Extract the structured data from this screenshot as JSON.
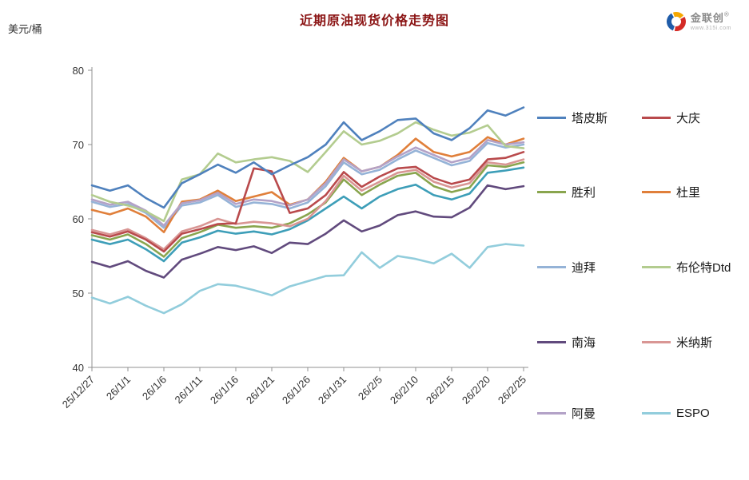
{
  "header": {
    "title": "近期原油现货价格走势图",
    "unit_label": "美元/桶"
  },
  "logo": {
    "brand": "金联创",
    "reg_mark": "®",
    "subtext": "www.315i.com",
    "colors": {
      "blue": "#1F5CA9",
      "red": "#D42B26",
      "yellow": "#F5A800"
    }
  },
  "chart_data": {
    "type": "line",
    "title": "近期原油现货价格走势图",
    "ylabel": "美元/桶",
    "ylim": [
      40,
      80
    ],
    "yticks": [
      80,
      70,
      60,
      50,
      40
    ],
    "x_tick_labels": [
      "25/12/27",
      "26/1/1",
      "26/1/6",
      "26/1/11",
      "26/1/16",
      "26/1/21",
      "26/1/26",
      "26/1/31",
      "26/2/5",
      "26/2/10",
      "26/2/15",
      "26/2/20",
      "26/2/25"
    ],
    "points_per_tick": 2,
    "grid": false,
    "legend_position": "right",
    "axis_color": "#909090",
    "series": [
      {
        "name": "迪拜",
        "color": "#95B3D7",
        "values": [
          62.3,
          61.6,
          62.0,
          60.8,
          58.8,
          61.8,
          62.2,
          63.2,
          61.6,
          62.2,
          62.0,
          61.4,
          62.2,
          64.4,
          67.6,
          66.0,
          66.6,
          68.0,
          69.2,
          68.2,
          67.2,
          67.8,
          70.2,
          69.6,
          70.0
        ]
      },
      {
        "name": "",
        "color": "#3D9EB8",
        "values": [
          57.2,
          56.6,
          57.2,
          55.9,
          54.3,
          56.8,
          57.5,
          58.4,
          58.0,
          58.3,
          57.9,
          58.6,
          59.8,
          61.4,
          63.0,
          61.4,
          63.0,
          64.0,
          64.6,
          63.2,
          62.6,
          63.4,
          66.2,
          66.5,
          66.9
        ]
      },
      {
        "name": "南海",
        "color": "#614A7D",
        "values": [
          54.2,
          53.5,
          54.3,
          53.0,
          52.1,
          54.5,
          55.3,
          56.2,
          55.8,
          56.3,
          55.4,
          56.8,
          56.6,
          58.0,
          59.8,
          58.3,
          59.1,
          60.5,
          61.0,
          60.3,
          60.2,
          61.5,
          64.5,
          64.0,
          64.4
        ]
      },
      {
        "name": "胜利",
        "color": "#89A54E",
        "values": [
          57.8,
          57.2,
          57.9,
          56.6,
          54.9,
          57.4,
          58.2,
          59.2,
          58.8,
          59.0,
          58.8,
          59.4,
          60.6,
          62.2,
          65.3,
          63.2,
          64.6,
          65.8,
          66.2,
          64.4,
          63.6,
          64.2,
          67.2,
          67.0,
          67.6
        ]
      },
      {
        "name": "米纳斯",
        "color": "#D99694",
        "values": [
          58.5,
          57.9,
          58.6,
          57.4,
          55.9,
          58.3,
          59.0,
          60.0,
          59.3,
          59.6,
          59.4,
          59.0,
          60.0,
          62.4,
          65.8,
          63.8,
          65.0,
          66.2,
          66.6,
          65.0,
          64.2,
          64.8,
          67.6,
          67.3,
          68.0
        ]
      },
      {
        "name": "杜里",
        "color": "#E07F3A",
        "values": [
          61.2,
          60.6,
          61.4,
          60.3,
          58.2,
          62.3,
          62.6,
          63.8,
          62.4,
          63.0,
          63.6,
          61.9,
          62.6,
          65.0,
          68.2,
          66.4,
          67.0,
          68.6,
          70.8,
          69.0,
          68.4,
          69.0,
          71.0,
          70.0,
          70.8
        ]
      },
      {
        "name": "阿曼",
        "color": "#B3A2C7",
        "values": [
          62.6,
          61.9,
          62.3,
          61.1,
          59.1,
          62.1,
          62.5,
          63.5,
          62.0,
          62.6,
          62.4,
          61.8,
          62.6,
          64.8,
          68.0,
          66.4,
          67.0,
          68.4,
          69.6,
          68.6,
          67.6,
          68.2,
          70.6,
          70.0,
          70.3
        ]
      },
      {
        "name": "大庆",
        "color": "#B94A4C",
        "values": [
          58.2,
          57.6,
          58.3,
          57.2,
          55.6,
          58.0,
          58.6,
          59.3,
          59.4,
          66.8,
          66.4,
          60.8,
          61.4,
          63.2,
          66.3,
          64.3,
          65.7,
          66.8,
          67.0,
          65.5,
          64.7,
          65.3,
          68.0,
          68.2,
          69.0
        ]
      },
      {
        "name": "布伦特Dtd",
        "color": "#B3CC8F",
        "values": [
          63.2,
          62.3,
          61.8,
          61.0,
          59.7,
          65.3,
          66.0,
          68.8,
          67.6,
          68.0,
          68.3,
          67.8,
          66.3,
          69.0,
          71.8,
          70.0,
          70.5,
          71.5,
          73.0,
          72.0,
          71.2,
          71.6,
          72.6,
          69.8,
          69.5
        ]
      },
      {
        "name": "塔皮斯",
        "color": "#4F81BD",
        "values": [
          64.5,
          63.8,
          64.5,
          62.8,
          61.5,
          64.8,
          66.0,
          67.3,
          66.2,
          67.6,
          66.0,
          67.2,
          68.3,
          70.0,
          73.0,
          70.6,
          71.8,
          73.3,
          73.5,
          71.5,
          70.6,
          72.2,
          74.6,
          73.9,
          75.0
        ]
      },
      {
        "name": "ESPO",
        "color": "#92CDDC",
        "values": [
          49.4,
          48.6,
          49.5,
          48.3,
          47.3,
          48.5,
          50.3,
          51.2,
          51.0,
          50.4,
          49.7,
          50.9,
          51.6,
          52.3,
          52.4,
          55.5,
          53.4,
          55.0,
          54.6,
          54.0,
          55.3,
          53.4,
          56.2,
          56.6,
          56.4
        ]
      }
    ]
  },
  "legend": {
    "entries": [
      {
        "label": "塔皮斯",
        "color": "#4F81BD"
      },
      {
        "label": "大庆",
        "color": "#B94A4C"
      },
      {
        "label": "胜利",
        "color": "#89A54E"
      },
      {
        "label": "杜里",
        "color": "#E07F3A"
      },
      {
        "label": "迪拜",
        "color": "#95B3D7"
      },
      {
        "label": "布伦特Dtd",
        "color": "#B3CC8F"
      },
      {
        "label": "南海",
        "color": "#614A7D"
      },
      {
        "label": "米纳斯",
        "color": "#D99694"
      },
      {
        "label": "阿曼",
        "color": "#B3A2C7"
      },
      {
        "label": "ESPO",
        "color": "#92CDDC"
      }
    ]
  }
}
